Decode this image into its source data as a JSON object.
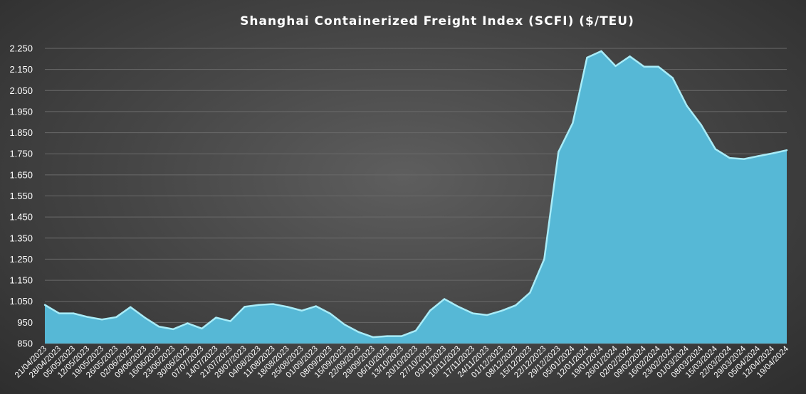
{
  "chart_data": {
    "type": "area",
    "title": "Shanghai Containerized Freight Index (SCFI) ($/TEU)",
    "xlabel": "",
    "ylabel": "",
    "ylim": [
      850,
      2250
    ],
    "yticks": [
      850,
      950,
      1050,
      1150,
      1250,
      1350,
      1450,
      1550,
      1650,
      1750,
      1850,
      1950,
      2050,
      2150,
      2250
    ],
    "ytick_labels": [
      "850",
      "950",
      "1.050",
      "1.150",
      "1.250",
      "1.350",
      "1.450",
      "1.550",
      "1.650",
      "1.750",
      "1.850",
      "1.950",
      "2.050",
      "2.150",
      "2.250"
    ],
    "grid": true,
    "legend": "none",
    "fill_color": "#56b8d6",
    "line_color": "#a9ecf8",
    "categories": [
      "21/04/2023",
      "28/04/2023",
      "05/05/2023",
      "12/05/2023",
      "19/05/2023",
      "26/05/2023",
      "02/06/2023",
      "09/06/2023",
      "16/06/2023",
      "23/06/2023",
      "30/06/2023",
      "07/07/2023",
      "14/07/2023",
      "21/07/2023",
      "28/07/2023",
      "04/08/2023",
      "11/08/2023",
      "18/08/2023",
      "25/08/2023",
      "01/09/2023",
      "08/09/2023",
      "15/09/2023",
      "22/09/2023",
      "29/09/2023",
      "06/10/2023",
      "13/10/2023",
      "20/10/2023",
      "27/10/2023",
      "03/11/2023",
      "10/11/2023",
      "17/11/2023",
      "24/11/2023",
      "01/12/2023",
      "08/12/2023",
      "15/12/2023",
      "22/12/2023",
      "29/12/2023",
      "05/01/2024",
      "12/01/2024",
      "19/01/2024",
      "26/01/2024",
      "02/02/2024",
      "09/02/2024",
      "16/02/2024",
      "23/02/2024",
      "01/03/2024",
      "08/03/2024",
      "15/03/2024",
      "22/03/2024",
      "29/03/2024",
      "05/04/2024",
      "12/04/2024",
      "19/04/2024"
    ],
    "values": [
      1033,
      993,
      993,
      976,
      964,
      975,
      1023,
      973,
      930,
      918,
      946,
      921,
      973,
      956,
      1024,
      1033,
      1037,
      1024,
      1006,
      1027,
      992,
      940,
      904,
      880,
      885,
      885,
      911,
      1006,
      1061,
      1024,
      993,
      985,
      1005,
      1031,
      1091,
      1250,
      1759,
      1896,
      2206,
      2237,
      2166,
      2212,
      2163,
      2163,
      2110,
      1977,
      1887,
      1772,
      1730,
      1725,
      1739,
      1752,
      1767
    ]
  }
}
